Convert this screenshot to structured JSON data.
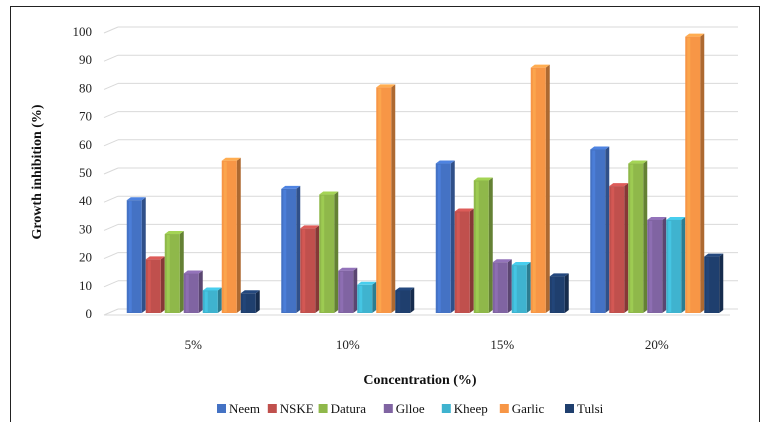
{
  "chart_data": {
    "type": "bar",
    "title": "",
    "xlabel": "Concentration (%)",
    "ylabel": "Growth inhibition (%)",
    "ylim": [
      0,
      100
    ],
    "yticks": [
      0,
      10,
      20,
      30,
      40,
      50,
      60,
      70,
      80,
      90,
      100
    ],
    "grid": true,
    "legend_position": "bottom",
    "categories": [
      "5%",
      "10%",
      "15%",
      "20%"
    ],
    "series": [
      {
        "name": "Neem",
        "color": "#4472c4",
        "values": [
          40,
          44,
          53,
          58
        ]
      },
      {
        "name": "NSKE",
        "color": "#c0504d",
        "values": [
          19,
          30,
          36,
          45
        ]
      },
      {
        "name": "Datura",
        "color": "#8fb84a",
        "values": [
          28,
          42,
          47,
          53
        ]
      },
      {
        "name": "Glloe",
        "color": "#8064a2",
        "values": [
          14,
          15,
          18,
          33
        ]
      },
      {
        "name": "Kheep",
        "color": "#3fb3cf",
        "values": [
          8,
          10,
          17,
          33
        ]
      },
      {
        "name": "Garlic",
        "color": "#f79646",
        "values": [
          54,
          80,
          87,
          98
        ]
      },
      {
        "name": "Tulsi",
        "color": "#1f3f6e",
        "values": [
          7,
          8,
          13,
          20
        ]
      }
    ]
  }
}
